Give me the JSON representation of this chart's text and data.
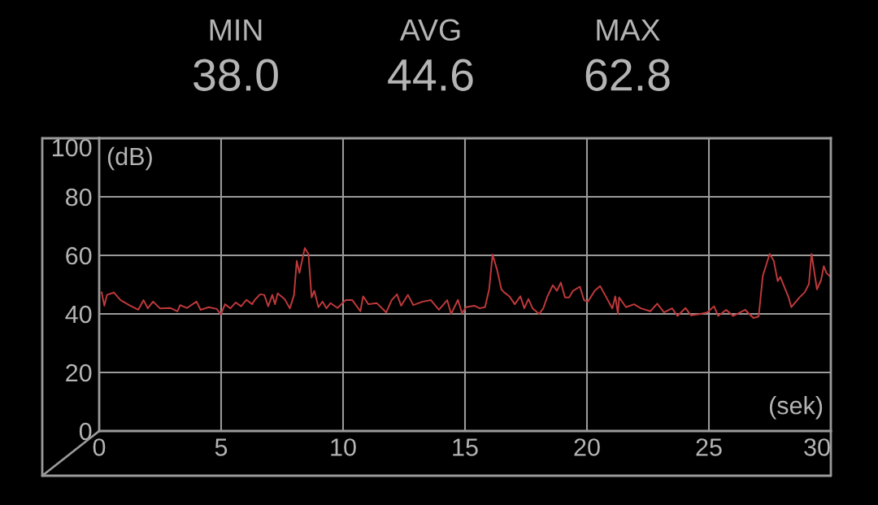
{
  "chart_data": {
    "type": "line",
    "xlabel": "(sek)",
    "ylabel": "(dB)",
    "annotations": [
      "MIN",
      "38.0",
      "AVG",
      "44.6",
      "MAX",
      "62.8"
    ],
    "xlim": [
      0,
      30
    ],
    "xticks": [
      0,
      5,
      10,
      15,
      20,
      25,
      30
    ],
    "ylim": [
      0,
      100
    ],
    "yticks": [
      0,
      20,
      40,
      60,
      80,
      100
    ],
    "grid": true,
    "marker": "none",
    "line_style": "solid",
    "series": [
      {
        "color": "#c0393b",
        "x": [
          0.1,
          0.21,
          0.32,
          0.6,
          0.88,
          1.27,
          1.6,
          1.82,
          1.99,
          2.21,
          2.49,
          2.93,
          3.21,
          3.32,
          3.6,
          3.99,
          4.16,
          4.49,
          4.82,
          4.99,
          5.16,
          5.38,
          5.6,
          5.82,
          6.04,
          6.27,
          6.38,
          6.6,
          6.77,
          6.93,
          7.1,
          7.21,
          7.32,
          7.6,
          7.82,
          7.99,
          8.1,
          8.21,
          8.43,
          8.58,
          8.71,
          8.82,
          8.99,
          9.16,
          9.32,
          9.49,
          9.77,
          10.1,
          10.38,
          10.71,
          10.82,
          11.04,
          11.38,
          11.77,
          11.99,
          12.21,
          12.38,
          12.66,
          12.88,
          13.27,
          13.6,
          13.93,
          14.27,
          14.43,
          14.71,
          14.88,
          15.04,
          15.38,
          15.6,
          15.82,
          15.99,
          16.13,
          16.32,
          16.49,
          16.6,
          16.82,
          17.04,
          17.27,
          17.43,
          17.6,
          17.77,
          18.04,
          18.21,
          18.38,
          18.6,
          18.77,
          18.93,
          19.1,
          19.27,
          19.43,
          19.71,
          19.88,
          20.04,
          20.32,
          20.54,
          20.77,
          21.04,
          21.16,
          21.27,
          21.32,
          21.6,
          21.93,
          22.21,
          22.6,
          22.88,
          23.16,
          23.49,
          23.71,
          24.04,
          24.27,
          24.66,
          24.93,
          25.21,
          25.38,
          25.71,
          25.99,
          26.49,
          26.82,
          27.04,
          27.21,
          27.49,
          27.66,
          27.82,
          27.93,
          28.27,
          28.38,
          28.71,
          28.93,
          29.1,
          29.21,
          29.43,
          29.6,
          29.71,
          29.82,
          29.99
        ],
        "values": [
          47.4,
          42.8,
          46.5,
          47.3,
          44.7,
          42.8,
          41.4,
          44.7,
          41.9,
          44.2,
          41.9,
          42.0,
          40.9,
          43.0,
          42.0,
          44.2,
          41.4,
          42.3,
          41.7,
          39.8,
          43.3,
          41.9,
          43.9,
          42.6,
          44.8,
          43.3,
          44.8,
          46.7,
          46.5,
          42.6,
          46.5,
          43.3,
          47.0,
          45.1,
          41.9,
          46.5,
          58.1,
          54.0,
          62.5,
          60.5,
          45.6,
          47.9,
          42.3,
          44.2,
          41.9,
          43.7,
          42.0,
          44.7,
          44.7,
          40.9,
          46.0,
          43.3,
          43.7,
          40.5,
          44.7,
          46.7,
          42.8,
          46.5,
          43.0,
          44.2,
          44.7,
          41.4,
          44.7,
          40.0,
          44.8,
          40.2,
          42.3,
          42.8,
          41.9,
          42.3,
          48.4,
          60.3,
          54.9,
          48.4,
          47.4,
          46.0,
          43.3,
          46.0,
          41.9,
          45.1,
          41.9,
          40.0,
          41.9,
          46.0,
          49.8,
          47.9,
          50.7,
          45.6,
          45.6,
          47.9,
          49.3,
          44.7,
          44.2,
          47.9,
          49.5,
          46.0,
          41.9,
          46.0,
          40.0,
          45.6,
          42.3,
          43.3,
          41.9,
          40.9,
          43.5,
          40.5,
          41.9,
          39.3,
          42.0,
          39.5,
          40.0,
          40.5,
          42.6,
          39.3,
          41.4,
          39.3,
          41.4,
          38.6,
          39.1,
          53.0,
          60.5,
          58.1,
          51.2,
          52.6,
          45.6,
          42.3,
          45.6,
          47.4,
          50.2,
          60.5,
          48.4,
          51.6,
          56.3,
          54.0,
          52.6
        ]
      }
    ]
  }
}
